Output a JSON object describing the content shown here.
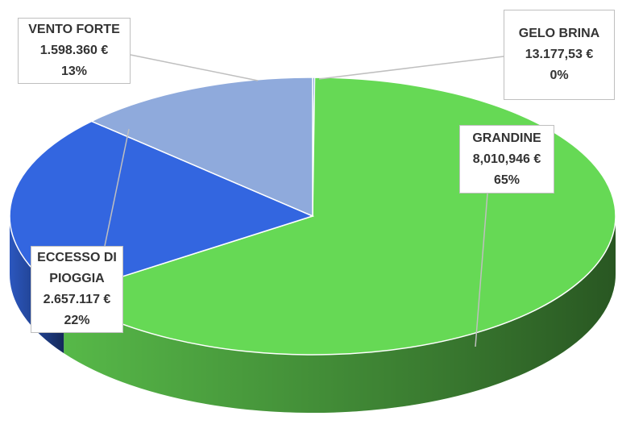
{
  "chart_data": {
    "type": "pie3d",
    "categories": [
      "GELO BRINA",
      "GRANDINE",
      "ECCESSO DI PIOGGIA",
      "VENTO FORTE"
    ],
    "values": [
      13177.53,
      8010946,
      2657117,
      1598360
    ],
    "value_labels": [
      "13.177,53 €",
      "8,010,946 €",
      "2.657.117 €",
      "1.598.360 €"
    ],
    "percents": [
      0,
      65,
      22,
      13
    ],
    "percent_labels": [
      "0%",
      "65%",
      "22%",
      "13%"
    ],
    "colors": [
      "#4472c4",
      "#66d955",
      "#3366e0",
      "#8faadc"
    ]
  }
}
